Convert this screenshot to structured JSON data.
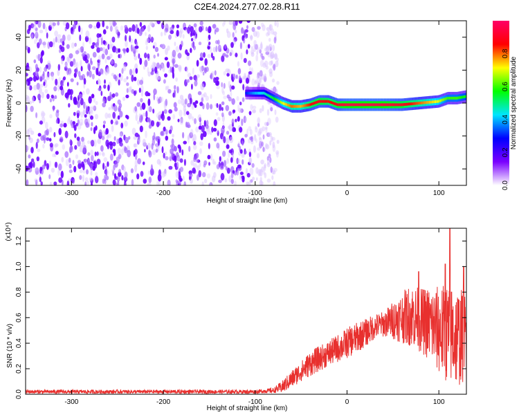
{
  "title": "C2E4.2024.277.02.28.R11",
  "chart_data": [
    {
      "type": "heatmap",
      "xlabel": "Height of straight line (km)",
      "ylabel": "Frequency (Hz)",
      "xlim": [
        -350,
        130
      ],
      "ylim": [
        -50,
        50
      ],
      "xticks": [
        -300,
        -200,
        -100,
        0,
        100
      ],
      "yticks": [
        -40,
        -20,
        0,
        20,
        40
      ],
      "colorbar": {
        "label": "Normalized spectral amplitude",
        "range": [
          0,
          1
        ],
        "ticks": [
          "0.0",
          "0.2",
          "0.4",
          "0.6",
          "0.8"
        ],
        "colormap": [
          "#ffffff",
          "#7a00ff",
          "#0000ff",
          "#00e5ff",
          "#00ff00",
          "#ffff00",
          "#ff0000",
          "#ff0066"
        ]
      },
      "ridge": {
        "x": [
          -110,
          -100,
          -90,
          -80,
          -70,
          -60,
          -50,
          -40,
          -30,
          -20,
          -10,
          0,
          20,
          40,
          60,
          80,
          100,
          110,
          120,
          130
        ],
        "frequency": [
          6,
          6,
          6,
          3,
          0,
          -2,
          -2,
          -1,
          1,
          1,
          -1,
          -1,
          -1,
          -1,
          -1,
          0,
          1,
          3,
          3,
          4
        ],
        "amplitude": [
          0.3,
          0.4,
          0.45,
          0.55,
          0.7,
          0.8,
          0.75,
          0.85,
          0.9,
          0.85,
          0.9,
          0.95,
          0.95,
          0.95,
          0.9,
          0.8,
          0.7,
          0.6,
          0.6,
          0.55
        ]
      },
      "noise_region": {
        "x_from": -350,
        "x_to": -95,
        "amplitude_max": 0.3
      },
      "grid": false
    },
    {
      "type": "line",
      "xlabel": "Height of straight line (km)",
      "ylabel": "SNR (10 * v/v)",
      "multiplier": "(x10⁴)",
      "xlim": [
        -350,
        130
      ],
      "ylim": [
        0,
        1.3
      ],
      "xticks": [
        -300,
        -200,
        -100,
        0,
        100
      ],
      "yticks": [
        "0.0",
        "0.2",
        "0.4",
        "0.6",
        "0.8",
        "1.0",
        "1.2"
      ],
      "color": "#e8302e",
      "grid": false,
      "series": [
        {
          "x": [
            -350,
            -300,
            -250,
            -200,
            -150,
            -100,
            -80,
            -70,
            -60,
            -50,
            -40,
            -30,
            -20,
            -10,
            0,
            10,
            20,
            30,
            40,
            50,
            60,
            70,
            80,
            90,
            100,
            110,
            120,
            130
          ],
          "values": [
            0.02,
            0.02,
            0.02,
            0.02,
            0.02,
            0.02,
            0.03,
            0.06,
            0.12,
            0.18,
            0.24,
            0.28,
            0.32,
            0.36,
            0.4,
            0.44,
            0.48,
            0.53,
            0.55,
            0.58,
            0.6,
            0.62,
            0.58,
            0.55,
            0.5,
            0.48,
            0.45,
            0.45
          ],
          "spread": [
            0.015,
            0.015,
            0.015,
            0.015,
            0.015,
            0.015,
            0.02,
            0.05,
            0.07,
            0.08,
            0.1,
            0.1,
            0.1,
            0.11,
            0.12,
            0.12,
            0.11,
            0.1,
            0.1,
            0.15,
            0.2,
            0.25,
            0.25,
            0.3,
            0.35,
            0.4,
            0.4,
            0.35
          ],
          "peaks": [
            {
              "x": 78,
              "y": 0.96
            },
            {
              "x": 107,
              "y": 1.02
            },
            {
              "x": 112,
              "y": 1.32
            },
            {
              "x": 127,
              "y": 1.0
            }
          ]
        }
      ]
    }
  ]
}
